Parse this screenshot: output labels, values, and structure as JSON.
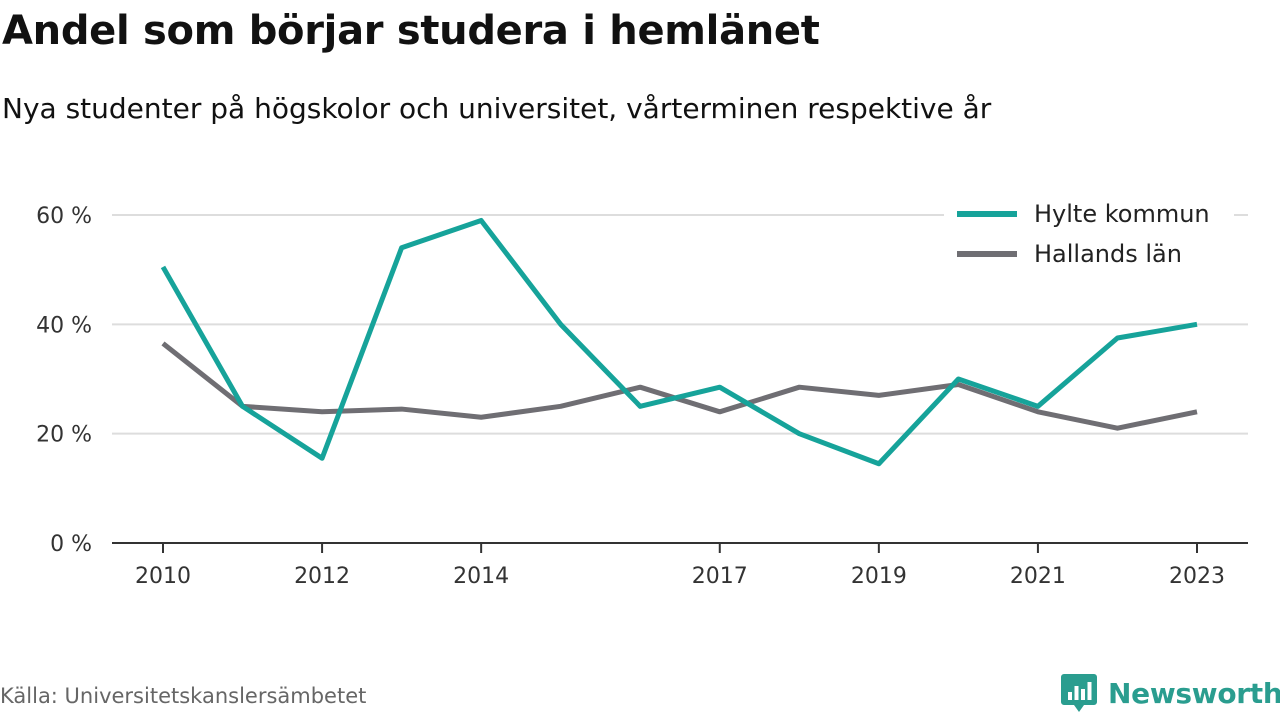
{
  "title": "Andel som börjar studera i hemlänet",
  "subtitle": "Nya studenter på högskolor och universitet, vårterminen respektive år",
  "source": "Källa: Universitetskanslersämbetet",
  "brand": {
    "name": "Newsworthy",
    "color": "#2a9d8f",
    "icon": "newsworthy-logo-icon"
  },
  "chart_data": {
    "type": "line",
    "x": [
      2010,
      2011,
      2012,
      2013,
      2014,
      2015,
      2016,
      2017,
      2018,
      2019,
      2020,
      2021,
      2022,
      2023
    ],
    "x_tick_labels": [
      "2010",
      "2012",
      "2014",
      "2017",
      "2019",
      "2021",
      "2023"
    ],
    "x_tick_values": [
      2010,
      2012,
      2014,
      2017,
      2019,
      2021,
      2023
    ],
    "y_tick_labels": [
      "0 %",
      "20 %",
      "40 %",
      "60 %"
    ],
    "y_tick_values": [
      0,
      20,
      40,
      60
    ],
    "ylim": [
      0,
      60
    ],
    "y_unit": "%",
    "grid": true,
    "legend_position": "top-right",
    "series": [
      {
        "name": "Hylte kommun",
        "color": "#16a39a",
        "values": [
          50.5,
          25,
          15.5,
          54,
          59,
          40,
          25,
          28.5,
          20,
          14.5,
          30,
          25,
          37.5,
          40
        ]
      },
      {
        "name": "Hallands län",
        "color": "#6f6e73",
        "values": [
          36.5,
          25,
          24,
          24.5,
          23,
          25,
          28.5,
          24,
          28.5,
          27,
          29,
          24,
          21,
          24
        ]
      }
    ]
  }
}
